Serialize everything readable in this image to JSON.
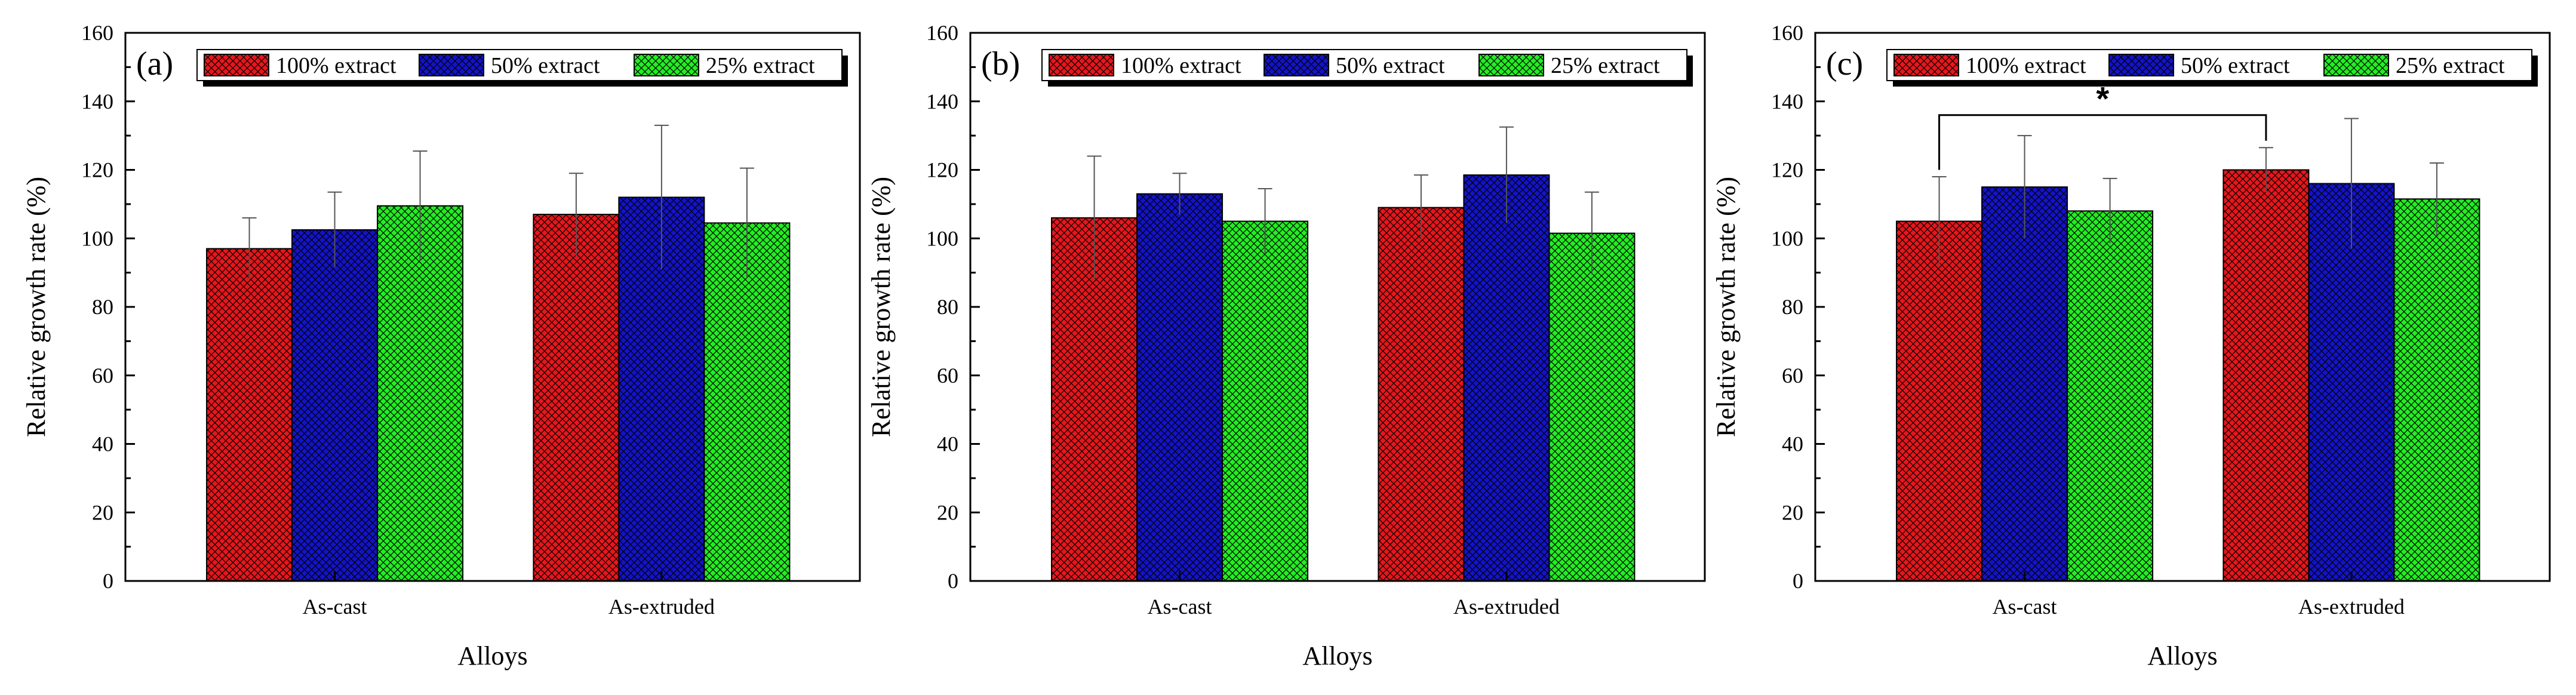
{
  "colors": {
    "series": [
      "#e8161b",
      "#1313c8",
      "#22ee22"
    ],
    "hatch": "#000000",
    "axis": "#000000",
    "background": "#ffffff"
  },
  "chart_data": [
    {
      "type": "bar",
      "panel_label": "(a)",
      "title": "",
      "xlabel": "Alloys",
      "ylabel": "Relative growth rate (%)",
      "ylim": [
        0,
        160
      ],
      "yticks": [
        "0",
        "20",
        "40",
        "60",
        "80",
        "100",
        "120",
        "140",
        "160"
      ],
      "grid": false,
      "legend_position": "top",
      "categories": [
        "As-cast",
        "As-extruded"
      ],
      "series": [
        {
          "name": "100% extract",
          "values": [
            97,
            107
          ],
          "errors": [
            9,
            12
          ]
        },
        {
          "name": "50% extract",
          "values": [
            102.5,
            112
          ],
          "errors": [
            11,
            21
          ]
        },
        {
          "name": "25% extract",
          "values": [
            109.5,
            104.5
          ],
          "errors": [
            16,
            16
          ]
        }
      ],
      "significance": []
    },
    {
      "type": "bar",
      "panel_label": "(b)",
      "title": "",
      "xlabel": "Alloys",
      "ylabel": "Relative growth rate (%)",
      "ylim": [
        0,
        160
      ],
      "yticks": [
        "0",
        "20",
        "40",
        "60",
        "80",
        "100",
        "120",
        "140",
        "160"
      ],
      "grid": false,
      "legend_position": "top",
      "categories": [
        "As-cast",
        "As-extruded"
      ],
      "series": [
        {
          "name": "100% extract",
          "values": [
            106,
            109
          ],
          "errors": [
            18,
            9.5
          ]
        },
        {
          "name": "50% extract",
          "values": [
            113,
            118.5
          ],
          "errors": [
            6,
            14
          ]
        },
        {
          "name": "25% extract",
          "values": [
            105,
            101.5
          ],
          "errors": [
            9.5,
            12
          ]
        }
      ],
      "significance": []
    },
    {
      "type": "bar",
      "panel_label": "(c)",
      "title": "",
      "xlabel": "Alloys",
      "ylabel": "Relative growth rate (%)",
      "ylim": [
        0,
        160
      ],
      "yticks": [
        "0",
        "20",
        "40",
        "60",
        "80",
        "100",
        "120",
        "140",
        "160"
      ],
      "grid": false,
      "legend_position": "top",
      "categories": [
        "As-cast",
        "As-extruded"
      ],
      "series": [
        {
          "name": "100% extract",
          "values": [
            105,
            120
          ],
          "errors": [
            13,
            6.5
          ]
        },
        {
          "name": "50% extract",
          "values": [
            115,
            116
          ],
          "errors": [
            15,
            19
          ]
        },
        {
          "name": "25% extract",
          "values": [
            108,
            111.5
          ],
          "errors": [
            9.5,
            10.5
          ]
        }
      ],
      "significance": [
        {
          "from_series": 0,
          "from_category": 0,
          "to_series": 0,
          "to_category": 1,
          "y": 136,
          "label": "*"
        }
      ]
    }
  ]
}
